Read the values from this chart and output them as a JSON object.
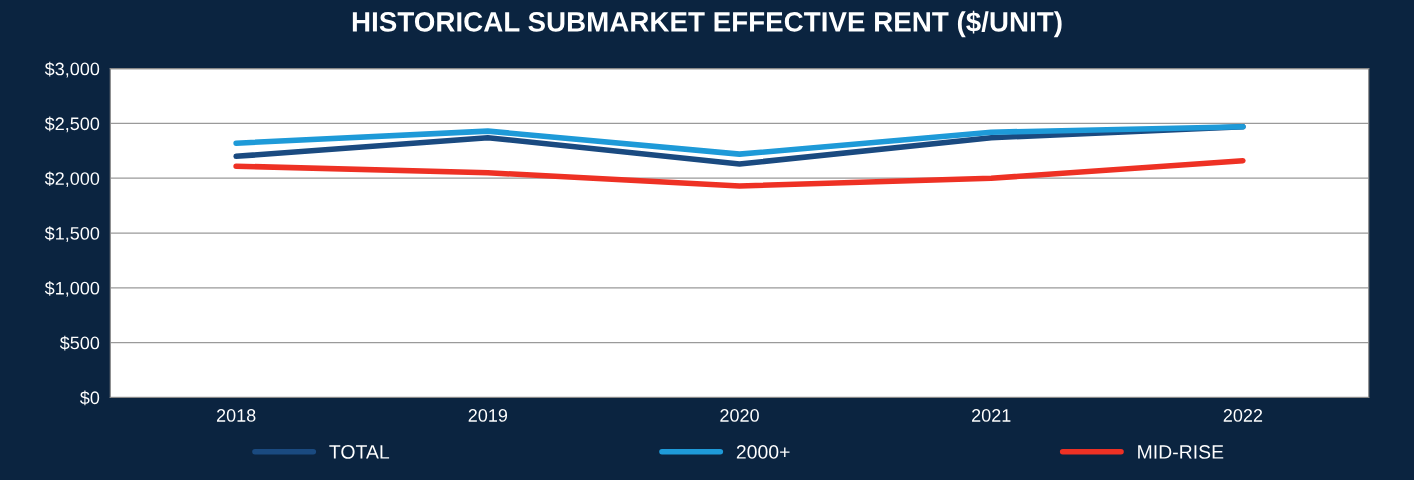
{
  "chart_data": {
    "type": "line",
    "title": "HISTORICAL SUBMARKET EFFECTIVE RENT ($/UNIT)",
    "categories": [
      "2018",
      "2019",
      "2020",
      "2021",
      "2022"
    ],
    "series": [
      {
        "name": "TOTAL",
        "color": "#1a4a80",
        "values": [
          2200,
          2370,
          2130,
          2370,
          2470
        ]
      },
      {
        "name": "2000+",
        "color": "#1e9ad8",
        "values": [
          2320,
          2430,
          2220,
          2420,
          2470
        ]
      },
      {
        "name": "MID-RISE",
        "color": "#ee3124",
        "values": [
          2110,
          2050,
          1930,
          2000,
          2160
        ]
      }
    ],
    "ylim": [
      0,
      3000
    ],
    "yticks": [
      {
        "value": 0,
        "label": "$0"
      },
      {
        "value": 500,
        "label": "$500"
      },
      {
        "value": 1000,
        "label": "$1,000"
      },
      {
        "value": 1500,
        "label": "$1,500"
      },
      {
        "value": 2000,
        "label": "$2,000"
      },
      {
        "value": 2500,
        "label": "$2,500"
      },
      {
        "value": 3000,
        "label": "$3,000"
      }
    ],
    "grid": "y",
    "legend": "bottom",
    "marker": "none",
    "line_style": "solid"
  }
}
